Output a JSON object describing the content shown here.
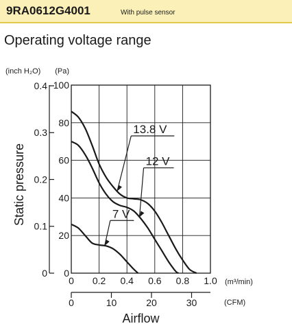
{
  "header": {
    "model": "9RA0612G4001",
    "subtitle": "With pulse sensor",
    "band_color": "#fbf0b8",
    "rule_color": "#e3c94a"
  },
  "section_title": "Operating voltage range",
  "chart_data": {
    "type": "line",
    "title": "",
    "xlabel": "Airflow",
    "ylabel": "Static pressure",
    "xlim": [
      0,
      1.0
    ],
    "ylim": [
      0,
      100
    ],
    "grid": true,
    "x_unit": "(m³/min)",
    "x_ticks": [
      0,
      0.2,
      0.4,
      0.6,
      0.8,
      1.0
    ],
    "x_tick_labels": [
      "0",
      "0.2",
      "0.4",
      "0.6",
      "0.8",
      "1.0"
    ],
    "x2_unit": "(CFM)",
    "x2_ticks": [
      0,
      10,
      20,
      30
    ],
    "y_ticks": [
      0,
      20,
      40,
      60,
      80,
      100
    ],
    "y_tick_labels": [
      "0",
      "20",
      "40",
      "60",
      "80",
      "100"
    ],
    "y_unit": "(Pa)",
    "y2_unit": "(inch H₂O)",
    "y2_ticks": [
      0,
      0.1,
      0.2,
      0.3,
      0.4
    ],
    "y2_tick_labels": [
      "0",
      "0.1",
      "0.2",
      "0.3",
      "0.4"
    ],
    "series": [
      {
        "name": "13.8 V",
        "label_at": [
          0.43,
          73
        ],
        "points": [
          [
            0,
            86
          ],
          [
            0.05,
            83
          ],
          [
            0.1,
            77
          ],
          [
            0.15,
            68
          ],
          [
            0.2,
            58
          ],
          [
            0.25,
            51
          ],
          [
            0.3,
            46
          ],
          [
            0.35,
            42
          ],
          [
            0.4,
            40
          ],
          [
            0.45,
            39.5
          ],
          [
            0.5,
            39
          ],
          [
            0.55,
            37
          ],
          [
            0.6,
            33
          ],
          [
            0.65,
            27
          ],
          [
            0.7,
            20
          ],
          [
            0.75,
            13
          ],
          [
            0.8,
            7
          ],
          [
            0.85,
            2
          ],
          [
            0.9,
            0
          ]
        ]
      },
      {
        "name": "12 V",
        "label_at": [
          0.52,
          56
        ],
        "points": [
          [
            0,
            70
          ],
          [
            0.05,
            68
          ],
          [
            0.1,
            63
          ],
          [
            0.15,
            56
          ],
          [
            0.2,
            48
          ],
          [
            0.25,
            42
          ],
          [
            0.3,
            38
          ],
          [
            0.35,
            36
          ],
          [
            0.4,
            35
          ],
          [
            0.45,
            33
          ],
          [
            0.5,
            29
          ],
          [
            0.55,
            24
          ],
          [
            0.6,
            18
          ],
          [
            0.65,
            12
          ],
          [
            0.7,
            6
          ],
          [
            0.75,
            1
          ],
          [
            0.77,
            0
          ]
        ]
      },
      {
        "name": "7 V",
        "label_at": [
          0.28,
          28
        ],
        "points": [
          [
            0,
            26
          ],
          [
            0.05,
            24
          ],
          [
            0.1,
            20
          ],
          [
            0.15,
            16
          ],
          [
            0.2,
            15
          ],
          [
            0.25,
            14.5
          ],
          [
            0.3,
            13
          ],
          [
            0.35,
            10
          ],
          [
            0.4,
            6
          ],
          [
            0.45,
            2
          ],
          [
            0.48,
            0
          ]
        ]
      }
    ]
  }
}
